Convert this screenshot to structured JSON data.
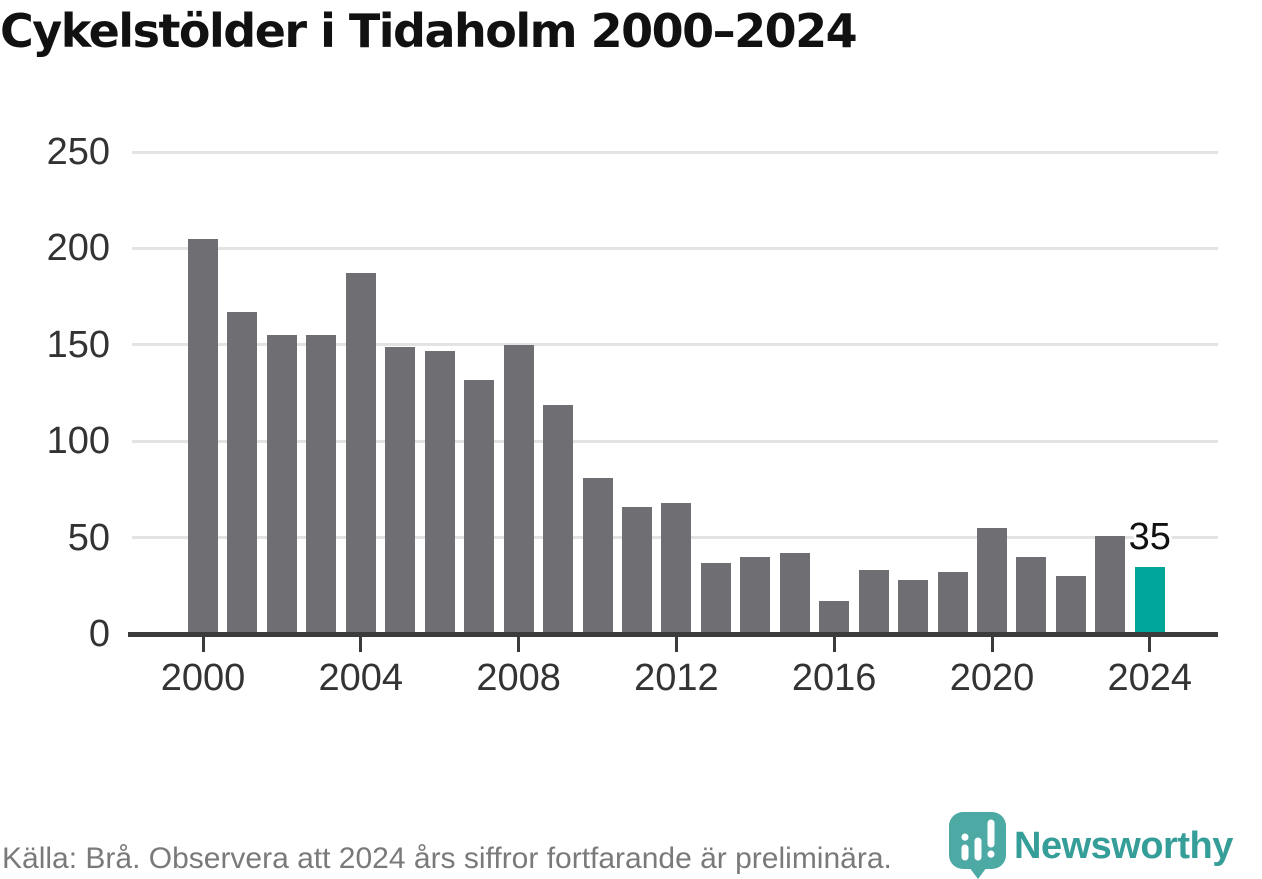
{
  "title": "Cykelstölder i Tidaholm 2000–2024",
  "footer": {
    "source_note": "Källa: Brå. Observera att 2024 års siffror fortfarande är preliminära.",
    "brand": "Newsworthy"
  },
  "colors": {
    "bar": "#6e6e73",
    "highlight_bar": "#00a69a",
    "title_text": "#111111",
    "axis": "#3b3b3b",
    "gridline": "#e3e3e3",
    "tick_label": "#333333",
    "footer_text": "#7a7a7a",
    "brand_teal": "#369e99",
    "logo_pin": "#4ca9a4",
    "annotation_text": "#111111"
  },
  "chart_data": {
    "type": "bar",
    "title": "Cykelstölder i Tidaholm 2000–2024",
    "xlabel": "",
    "ylabel": "",
    "x": [
      2000,
      2001,
      2002,
      2003,
      2004,
      2005,
      2006,
      2007,
      2008,
      2009,
      2010,
      2011,
      2012,
      2013,
      2014,
      2015,
      2016,
      2017,
      2018,
      2019,
      2020,
      2021,
      2022,
      2023,
      2024
    ],
    "values": [
      205,
      167,
      155,
      155,
      187,
      149,
      147,
      132,
      150,
      119,
      81,
      66,
      68,
      37,
      40,
      42,
      17,
      33,
      28,
      32,
      55,
      40,
      30,
      51,
      35
    ],
    "ylim": [
      0,
      250
    ],
    "yticks": [
      0,
      50,
      100,
      150,
      200,
      250
    ],
    "xticks": [
      2000,
      2004,
      2008,
      2012,
      2016,
      2020,
      2024
    ],
    "grid": "horizontal-only",
    "legend_position": "none",
    "highlight": {
      "x": 2024,
      "label": "35"
    }
  }
}
